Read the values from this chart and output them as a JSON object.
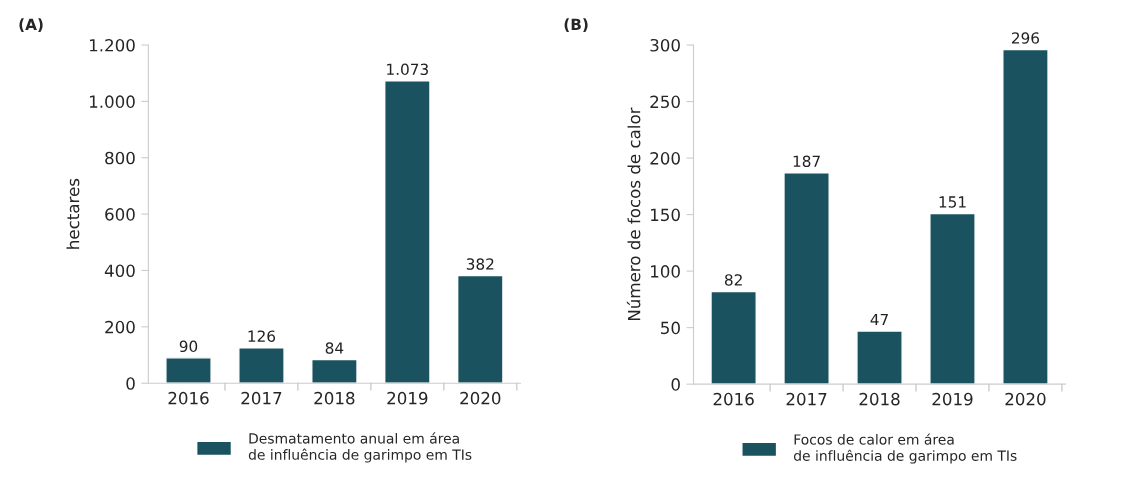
{
  "chart_data": [
    {
      "type": "bar",
      "title": "(A)",
      "ylabel": "hectares",
      "categories": [
        "2016",
        "2017",
        "2018",
        "2019",
        "2020"
      ],
      "series": [
        {
          "name": "Desmatamento anual em área\nde influência de garimpo em TIs",
          "color": "#1a525f",
          "values": [
            90,
            126,
            84,
            1073,
            382
          ],
          "value_labels": [
            "90",
            "126",
            "84",
            "1.073",
            "382"
          ]
        }
      ],
      "ylim": [
        0,
        1200
      ],
      "yticks": [
        0,
        200,
        400,
        600,
        800,
        {
          "value": 1000,
          "label": "1.000"
        },
        {
          "value": 1200,
          "label": "1.200"
        }
      ],
      "grid": false,
      "legend": "bottom"
    },
    {
      "type": "bar",
      "title": "(B)",
      "ylabel": "Número de focos de calor",
      "categories": [
        "2016",
        "2017",
        "2018",
        "2019",
        "2020"
      ],
      "series": [
        {
          "name": "Focos de calor em área\nde influência de garimpo em TIs",
          "color": "#1a525f",
          "values": [
            82,
            187,
            47,
            151,
            296
          ]
        }
      ],
      "ylim": [
        0,
        300
      ],
      "yticks": [
        0,
        50,
        100,
        150,
        200,
        250,
        300
      ],
      "grid": false,
      "legend": "bottom",
      "data_labels": true
    }
  ]
}
